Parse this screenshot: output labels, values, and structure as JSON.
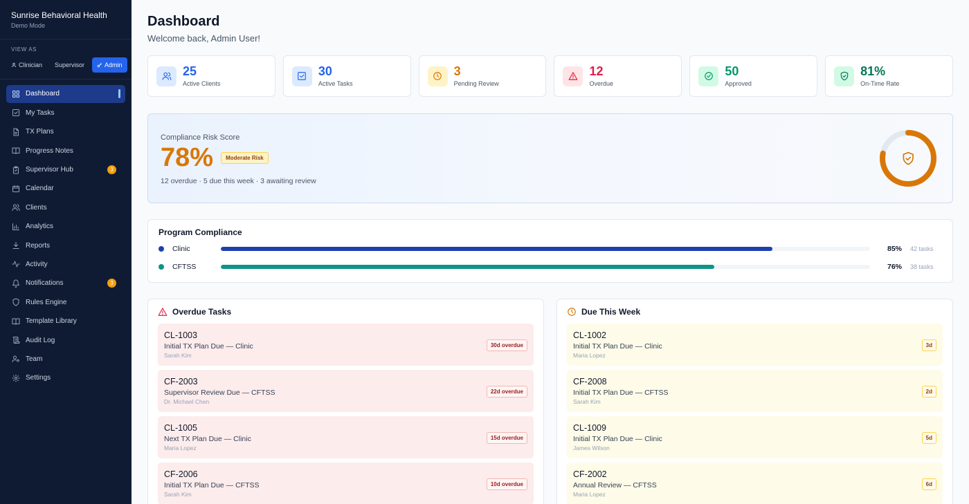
{
  "brand": {
    "name": "Sunrise Behavioral Health",
    "mode": "Demo Mode"
  },
  "view_as": {
    "label": "VIEW AS",
    "roles": [
      {
        "label": "Clinician",
        "active": false
      },
      {
        "label": "Supervisor",
        "active": false
      },
      {
        "label": "Admin",
        "active": true
      }
    ]
  },
  "nav": [
    {
      "label": "Dashboard",
      "icon": "grid-icon",
      "active": true,
      "badge": ""
    },
    {
      "label": "My Tasks",
      "icon": "checkbox-icon",
      "badge": ""
    },
    {
      "label": "TX Plans",
      "icon": "file-icon",
      "badge": ""
    },
    {
      "label": "Progress Notes",
      "icon": "book-icon",
      "badge": ""
    },
    {
      "label": "Supervisor Hub",
      "icon": "clipboard-icon",
      "badge": "3"
    },
    {
      "label": "Calendar",
      "icon": "calendar-icon",
      "badge": ""
    },
    {
      "label": "Clients",
      "icon": "users-icon",
      "badge": ""
    },
    {
      "label": "Analytics",
      "icon": "bar-chart-icon",
      "badge": ""
    },
    {
      "label": "Reports",
      "icon": "download-icon",
      "badge": ""
    },
    {
      "label": "Activity",
      "icon": "activity-icon",
      "badge": ""
    },
    {
      "label": "Notifications",
      "icon": "bell-icon",
      "badge": "3"
    },
    {
      "label": "Rules Engine",
      "icon": "shield-icon",
      "badge": ""
    },
    {
      "label": "Template Library",
      "icon": "book-icon",
      "badge": ""
    },
    {
      "label": "Audit Log",
      "icon": "scroll-icon",
      "badge": ""
    },
    {
      "label": "Team",
      "icon": "user-cog-icon",
      "badge": ""
    },
    {
      "label": "Settings",
      "icon": "gear-icon",
      "badge": ""
    }
  ],
  "header": {
    "title": "Dashboard",
    "subtitle": "Welcome back, Admin User!"
  },
  "stats": [
    {
      "value": "25",
      "label": "Active Clients",
      "icon": "users-icon",
      "color": "#2563eb",
      "bg": "#dbeafe"
    },
    {
      "value": "30",
      "label": "Active Tasks",
      "icon": "checkbox-icon",
      "color": "#2563eb",
      "bg": "#dbeafe"
    },
    {
      "value": "3",
      "label": "Pending Review",
      "icon": "clock-icon",
      "color": "#d97706",
      "bg": "#fef3c7"
    },
    {
      "value": "12",
      "label": "Overdue",
      "icon": "alert-triangle-icon",
      "color": "#e11d48",
      "bg": "#ffe4e6"
    },
    {
      "value": "50",
      "label": "Approved",
      "icon": "check-circle-icon",
      "color": "#059669",
      "bg": "#d1fae5"
    },
    {
      "value": "81%",
      "label": "On-Time Rate",
      "icon": "shield-check-icon",
      "color": "#047857",
      "bg": "#d1fae5"
    }
  ],
  "risk": {
    "label": "Compliance Risk Score",
    "score": "78%",
    "score_value": 78,
    "badge": "Moderate Risk",
    "detail": "12 overdue · 5 due this week · 3 awaiting review",
    "color": "#d97706"
  },
  "program": {
    "title": "Program Compliance",
    "rows": [
      {
        "name": "Clinic",
        "pct": "85%",
        "value": 85,
        "tasks": "42 tasks",
        "color": "#1e40af"
      },
      {
        "name": "CFTSS",
        "pct": "76%",
        "value": 76,
        "tasks": "38 tasks",
        "color": "#0d9488"
      }
    ]
  },
  "overdue": {
    "title": "Overdue Tasks",
    "items": [
      {
        "id": "CL-1003",
        "title": "Initial TX Plan Due — Clinic",
        "person": "Sarah Kim",
        "badge": "30d overdue"
      },
      {
        "id": "CF-2003",
        "title": "Supervisor Review Due — CFTSS",
        "person": "Dr. Michael Chen",
        "badge": "22d overdue"
      },
      {
        "id": "CL-1005",
        "title": "Next TX Plan Due — Clinic",
        "person": "Maria Lopez",
        "badge": "15d overdue"
      },
      {
        "id": "CF-2006",
        "title": "Initial TX Plan Due — CFTSS",
        "person": "Sarah Kim",
        "badge": "10d overdue"
      }
    ]
  },
  "due_week": {
    "title": "Due This Week",
    "items": [
      {
        "id": "CL-1002",
        "title": "Initial TX Plan Due — Clinic",
        "person": "Maria Lopez",
        "badge": "3d"
      },
      {
        "id": "CF-2008",
        "title": "Initial TX Plan Due — CFTSS",
        "person": "Sarah Kim",
        "badge": "2d"
      },
      {
        "id": "CL-1009",
        "title": "Initial TX Plan Due — Clinic",
        "person": "James Wilson",
        "badge": "5d"
      },
      {
        "id": "CF-2002",
        "title": "Annual Review — CFTSS",
        "person": "Maria Lopez",
        "badge": "6d"
      }
    ]
  }
}
